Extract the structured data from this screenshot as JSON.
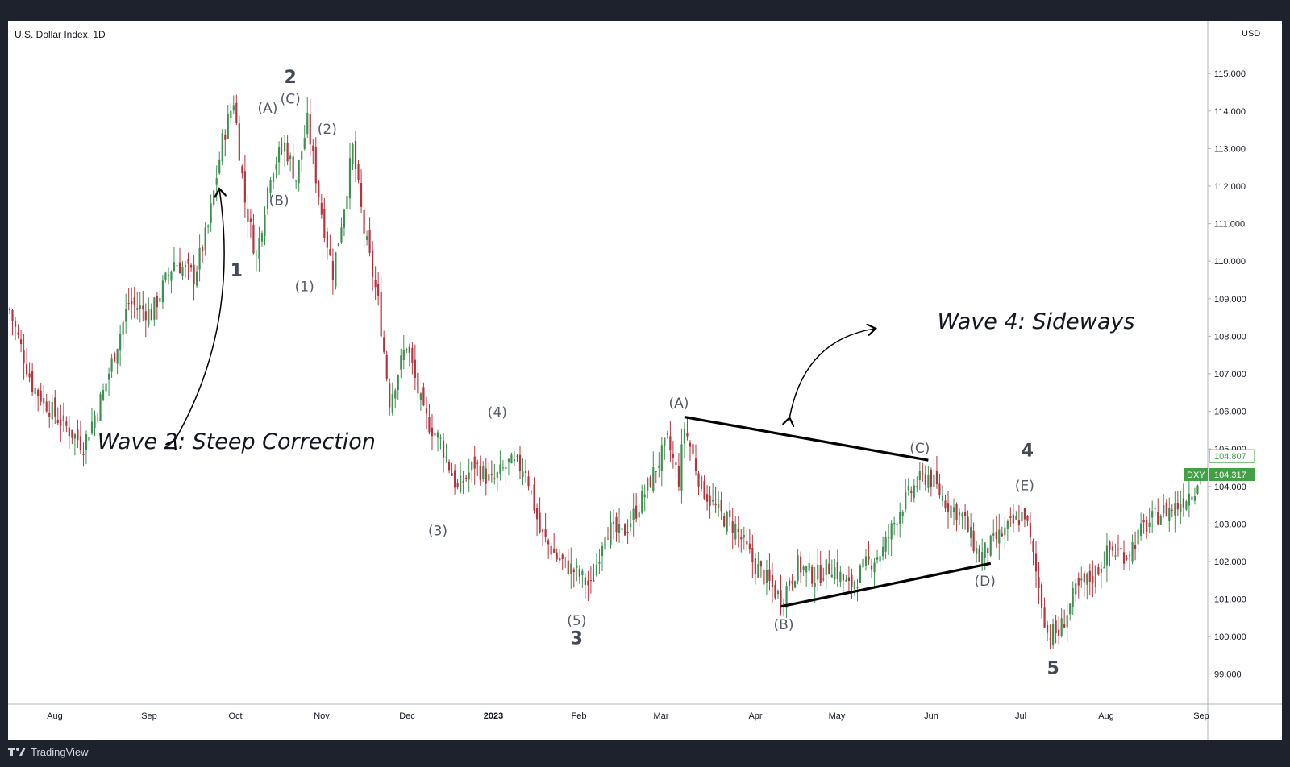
{
  "header": {
    "symbol_title": "U.S. Dollar Index, 1D",
    "currency": "USD"
  },
  "footer": {
    "brand": "TradingView",
    "logo_icon": "tradingview-logo-icon"
  },
  "colors": {
    "up": "#26a69a",
    "up_body": "#3f8f52",
    "down": "#b3343f",
    "line": "#000000",
    "last_price_bg": "#43a047",
    "prev_close_border": "#43a047"
  },
  "chart_data": {
    "type": "candlestick",
    "title": "U.S. Dollar Index, 1D",
    "ylim": [
      98.2,
      116.4
    ],
    "y_ticks": [
      "99.000",
      "100.000",
      "101.000",
      "102.000",
      "103.000",
      "104.000",
      "105.000",
      "106.000",
      "107.000",
      "108.000",
      "109.000",
      "110.000",
      "111.000",
      "112.000",
      "113.000",
      "114.000",
      "115.000"
    ],
    "x_ticks": [
      {
        "label": "Aug",
        "bold": false
      },
      {
        "label": "Sep",
        "bold": false
      },
      {
        "label": "Oct",
        "bold": false
      },
      {
        "label": "Nov",
        "bold": false
      },
      {
        "label": "Dec",
        "bold": false
      },
      {
        "label": "2023",
        "bold": true
      },
      {
        "label": "Feb",
        "bold": false
      },
      {
        "label": "Mar",
        "bold": false
      },
      {
        "label": "Apr",
        "bold": false
      },
      {
        "label": "May",
        "bold": false
      },
      {
        "label": "Jun",
        "bold": false
      },
      {
        "label": "Jul",
        "bold": false
      },
      {
        "label": "Aug",
        "bold": false
      },
      {
        "label": "Sep",
        "bold": false
      }
    ],
    "price_path": [
      {
        "d": 0,
        "v": 108.7
      },
      {
        "d": 8,
        "v": 106.7
      },
      {
        "d": 16,
        "v": 105.9
      },
      {
        "d": 26,
        "v": 105.1
      },
      {
        "d": 33,
        "v": 106.5
      },
      {
        "d": 42,
        "v": 108.9
      },
      {
        "d": 50,
        "v": 108.6
      },
      {
        "d": 58,
        "v": 110.0
      },
      {
        "d": 65,
        "v": 109.6
      },
      {
        "d": 70,
        "v": 110.9
      },
      {
        "d": 75,
        "v": 113.2
      },
      {
        "d": 79,
        "v": 114.3
      },
      {
        "d": 83,
        "v": 111.6
      },
      {
        "d": 87,
        "v": 110.1
      },
      {
        "d": 92,
        "v": 112.4
      },
      {
        "d": 97,
        "v": 113.1
      },
      {
        "d": 101,
        "v": 112.2
      },
      {
        "d": 105,
        "v": 113.7
      },
      {
        "d": 110,
        "v": 111.3
      },
      {
        "d": 114,
        "v": 109.7
      },
      {
        "d": 118,
        "v": 111.5
      },
      {
        "d": 121,
        "v": 113.0
      },
      {
        "d": 125,
        "v": 110.8
      },
      {
        "d": 130,
        "v": 108.9
      },
      {
        "d": 134,
        "v": 106.3
      },
      {
        "d": 140,
        "v": 107.8
      },
      {
        "d": 146,
        "v": 105.9
      },
      {
        "d": 152,
        "v": 105.2
      },
      {
        "d": 158,
        "v": 103.9
      },
      {
        "d": 164,
        "v": 104.6
      },
      {
        "d": 170,
        "v": 104.1
      },
      {
        "d": 176,
        "v": 104.6
      },
      {
        "d": 182,
        "v": 104.5
      },
      {
        "d": 187,
        "v": 102.8
      },
      {
        "d": 193,
        "v": 102.1
      },
      {
        "d": 200,
        "v": 101.7
      },
      {
        "d": 205,
        "v": 101.3
      },
      {
        "d": 210,
        "v": 102.9
      },
      {
        "d": 216,
        "v": 102.7
      },
      {
        "d": 222,
        "v": 103.5
      },
      {
        "d": 228,
        "v": 104.5
      },
      {
        "d": 232,
        "v": 105.2
      },
      {
        "d": 236,
        "v": 104.2
      },
      {
        "d": 238,
        "v": 105.6
      },
      {
        "d": 244,
        "v": 104.0
      },
      {
        "d": 250,
        "v": 103.3
      },
      {
        "d": 256,
        "v": 102.9
      },
      {
        "d": 262,
        "v": 102.0
      },
      {
        "d": 268,
        "v": 101.4
      },
      {
        "d": 272,
        "v": 101.0
      },
      {
        "d": 278,
        "v": 101.9
      },
      {
        "d": 284,
        "v": 101.6
      },
      {
        "d": 290,
        "v": 101.9
      },
      {
        "d": 296,
        "v": 101.3
      },
      {
        "d": 302,
        "v": 101.9
      },
      {
        "d": 308,
        "v": 102.3
      },
      {
        "d": 314,
        "v": 103.4
      },
      {
        "d": 320,
        "v": 104.1
      },
      {
        "d": 324,
        "v": 104.3
      },
      {
        "d": 330,
        "v": 103.6
      },
      {
        "d": 336,
        "v": 103.2
      },
      {
        "d": 342,
        "v": 102.1
      },
      {
        "d": 348,
        "v": 102.6
      },
      {
        "d": 354,
        "v": 103.0
      },
      {
        "d": 358,
        "v": 103.3
      },
      {
        "d": 362,
        "v": 101.7
      },
      {
        "d": 366,
        "v": 100.1
      },
      {
        "d": 370,
        "v": 100.1
      },
      {
        "d": 376,
        "v": 101.2
      },
      {
        "d": 382,
        "v": 101.6
      },
      {
        "d": 388,
        "v": 102.3
      },
      {
        "d": 394,
        "v": 102.2
      },
      {
        "d": 400,
        "v": 102.9
      },
      {
        "d": 406,
        "v": 103.3
      },
      {
        "d": 412,
        "v": 103.5
      },
      {
        "d": 418,
        "v": 104.0
      },
      {
        "d": 420,
        "v": 104.3
      }
    ],
    "trendlines": [
      {
        "from": {
          "d": 238,
          "v": 105.85
        },
        "to": {
          "d": 324,
          "v": 104.7
        }
      },
      {
        "from": {
          "d": 272,
          "v": 100.8
        },
        "to": {
          "d": 346,
          "v": 101.95
        }
      }
    ],
    "wave_labels": [
      {
        "text": "(A)",
        "d": 91,
        "v": 113.95,
        "kind": "sub"
      },
      {
        "text": "2",
        "d": 99,
        "v": 114.75,
        "kind": "major"
      },
      {
        "text": "(C)",
        "d": 99,
        "v": 114.2,
        "kind": "sub"
      },
      {
        "text": "(2)",
        "d": 112,
        "v": 113.4,
        "kind": "sub"
      },
      {
        "text": "(B)",
        "d": 95,
        "v": 111.5,
        "kind": "sub"
      },
      {
        "text": "1",
        "d": 80,
        "v": 109.6,
        "kind": "major"
      },
      {
        "text": "(1)",
        "d": 104,
        "v": 109.2,
        "kind": "sub"
      },
      {
        "text": "(4)",
        "d": 172,
        "v": 105.85,
        "kind": "sub"
      },
      {
        "text": "(3)",
        "d": 151,
        "v": 102.7,
        "kind": "sub"
      },
      {
        "text": "(5)",
        "d": 200,
        "v": 100.3,
        "kind": "sub"
      },
      {
        "text": "3",
        "d": 200,
        "v": 99.8,
        "kind": "major"
      },
      {
        "text": "(A)",
        "d": 236,
        "v": 106.1,
        "kind": "sub"
      },
      {
        "text": "(B)",
        "d": 273,
        "v": 100.2,
        "kind": "sub"
      },
      {
        "text": "(C)",
        "d": 321,
        "v": 104.9,
        "kind": "sub"
      },
      {
        "text": "4",
        "d": 359,
        "v": 104.8,
        "kind": "major"
      },
      {
        "text": "(E)",
        "d": 358,
        "v": 103.9,
        "kind": "sub"
      },
      {
        "text": "(D)",
        "d": 344,
        "v": 101.35,
        "kind": "sub"
      },
      {
        "text": "5",
        "d": 368,
        "v": 99.0,
        "kind": "major"
      }
    ],
    "callouts": [
      {
        "text": "Wave 2: Steep Correction",
        "d": 80,
        "v": 105.0
      },
      {
        "text": "Wave 4: Sideways",
        "d": 362,
        "v": 108.2
      }
    ],
    "price_tags": [
      {
        "label": "",
        "value": "104.807",
        "style": "outline"
      },
      {
        "label": "DXY",
        "value": "104.317",
        "style": "filled"
      }
    ]
  }
}
